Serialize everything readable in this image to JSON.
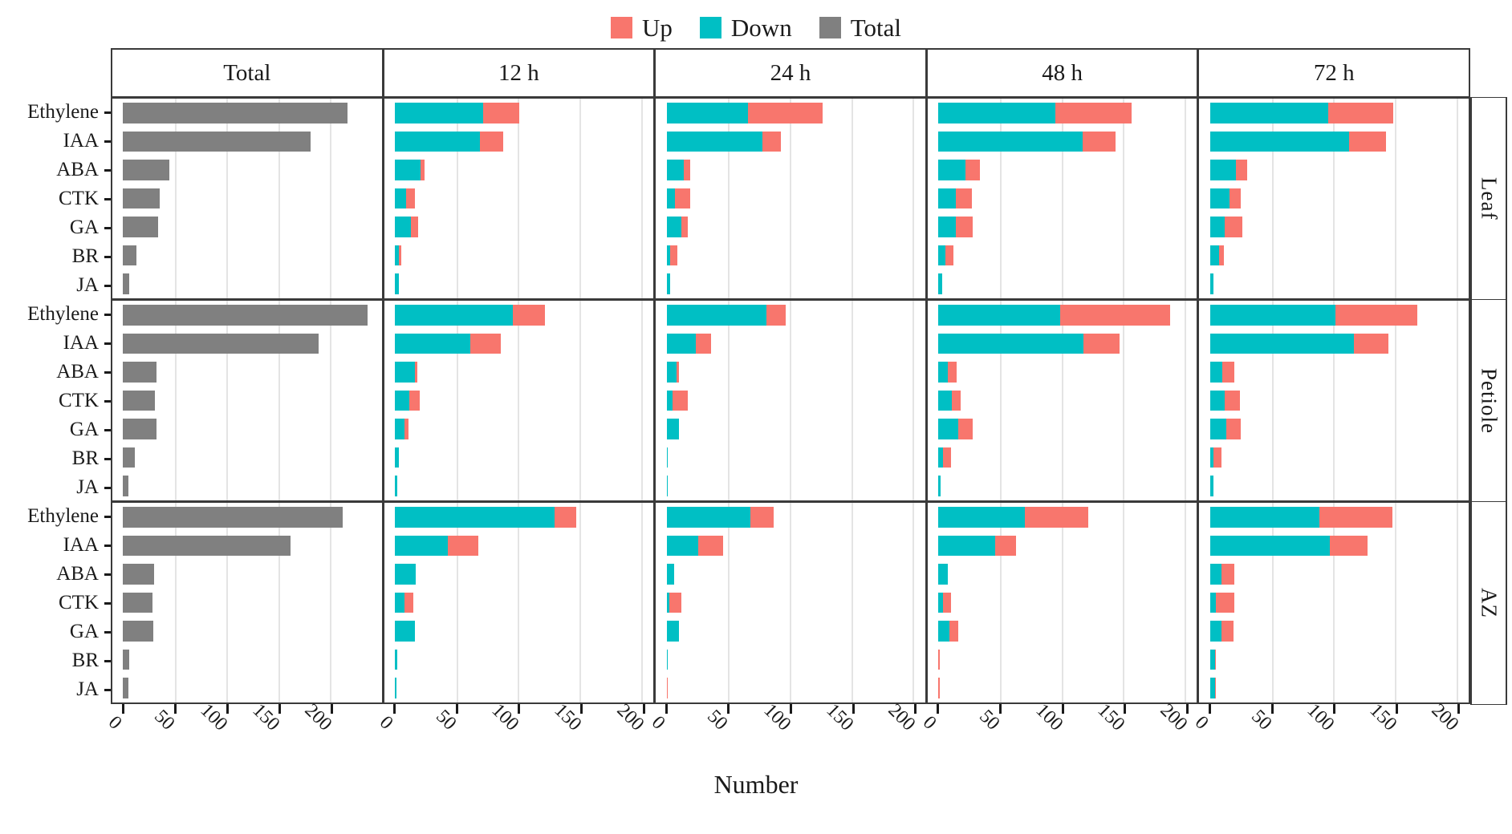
{
  "chart_data": {
    "type": "bar",
    "stacked": true,
    "orientation": "horizontal",
    "xlabel": "Number",
    "x_ticks": [
      0,
      50,
      100,
      150,
      200
    ],
    "gridlines": [
      50,
      100,
      150,
      200
    ],
    "categories": [
      "Ethylene",
      "IAA",
      "ABA",
      "CTK",
      "GA",
      "BR",
      "JA"
    ],
    "legend": [
      {
        "label": "Up",
        "color": "#F8766D"
      },
      {
        "label": "Down",
        "color": "#00BFC4"
      },
      {
        "label": "Total",
        "color": "#808080"
      }
    ],
    "colors": {
      "up": "#F8766D",
      "down": "#00BFC4",
      "total": "#808080",
      "gridline": "#e4e4e4"
    },
    "columns": [
      {
        "label": "Total",
        "key": "total",
        "x_max": 250
      },
      {
        "label": "12 h",
        "key": "h12",
        "x_max": 210
      },
      {
        "label": "24 h",
        "key": "h24",
        "x_max": 210
      },
      {
        "label": "48 h",
        "key": "h48",
        "x_max": 210
      },
      {
        "label": "72 h",
        "key": "h72",
        "x_max": 210
      }
    ],
    "facet_rows": [
      {
        "label": "Leaf",
        "total": [
          217,
          181,
          45,
          35,
          34,
          13,
          6
        ],
        "h12": {
          "down": [
            72,
            69,
            21,
            9,
            13,
            3,
            3
          ],
          "up": [
            29,
            19,
            3,
            7,
            6,
            2,
            0
          ]
        },
        "h24": {
          "down": [
            66,
            78,
            14,
            7,
            12,
            3,
            3
          ],
          "up": [
            61,
            15,
            5,
            12,
            5,
            6,
            0
          ]
        },
        "h48": {
          "down": [
            95,
            117,
            22,
            14,
            14,
            6,
            3
          ],
          "up": [
            62,
            27,
            12,
            13,
            14,
            6,
            0
          ]
        },
        "h72": {
          "down": [
            96,
            113,
            21,
            16,
            12,
            7,
            3
          ],
          "up": [
            53,
            30,
            9,
            9,
            14,
            4,
            0
          ]
        }
      },
      {
        "label": "Petiole",
        "total": [
          236,
          189,
          32,
          31,
          32,
          11,
          5
        ],
        "h12": {
          "down": [
            96,
            61,
            16,
            12,
            8,
            3,
            2
          ],
          "up": [
            26,
            25,
            2,
            8,
            3,
            0,
            0
          ]
        },
        "h24": {
          "down": [
            81,
            24,
            8,
            5,
            10,
            1,
            1
          ],
          "up": [
            16,
            12,
            2,
            12,
            0,
            0,
            0
          ]
        },
        "h48": {
          "down": [
            99,
            118,
            8,
            11,
            16,
            4,
            2
          ],
          "up": [
            89,
            29,
            7,
            7,
            12,
            6,
            0
          ]
        },
        "h72": {
          "down": [
            102,
            117,
            10,
            12,
            13,
            3,
            3
          ],
          "up": [
            66,
            28,
            10,
            12,
            12,
            6,
            0
          ]
        }
      },
      {
        "label": "AZ",
        "total": [
          212,
          162,
          30,
          28,
          29,
          6,
          5
        ],
        "h12": {
          "down": [
            130,
            43,
            17,
            8,
            16,
            2,
            1
          ],
          "up": [
            17,
            25,
            0,
            7,
            0,
            0,
            0
          ]
        },
        "h24": {
          "down": [
            68,
            26,
            6,
            2,
            10,
            1,
            0
          ],
          "up": [
            19,
            20,
            0,
            10,
            0,
            0,
            1
          ]
        },
        "h48": {
          "down": [
            70,
            46,
            8,
            4,
            9,
            0,
            0
          ],
          "up": [
            52,
            17,
            0,
            6,
            7,
            1,
            1
          ]
        },
        "h72": {
          "down": [
            89,
            97,
            9,
            5,
            9,
            4,
            4
          ],
          "up": [
            59,
            31,
            11,
            15,
            10,
            1,
            1
          ]
        }
      }
    ]
  }
}
